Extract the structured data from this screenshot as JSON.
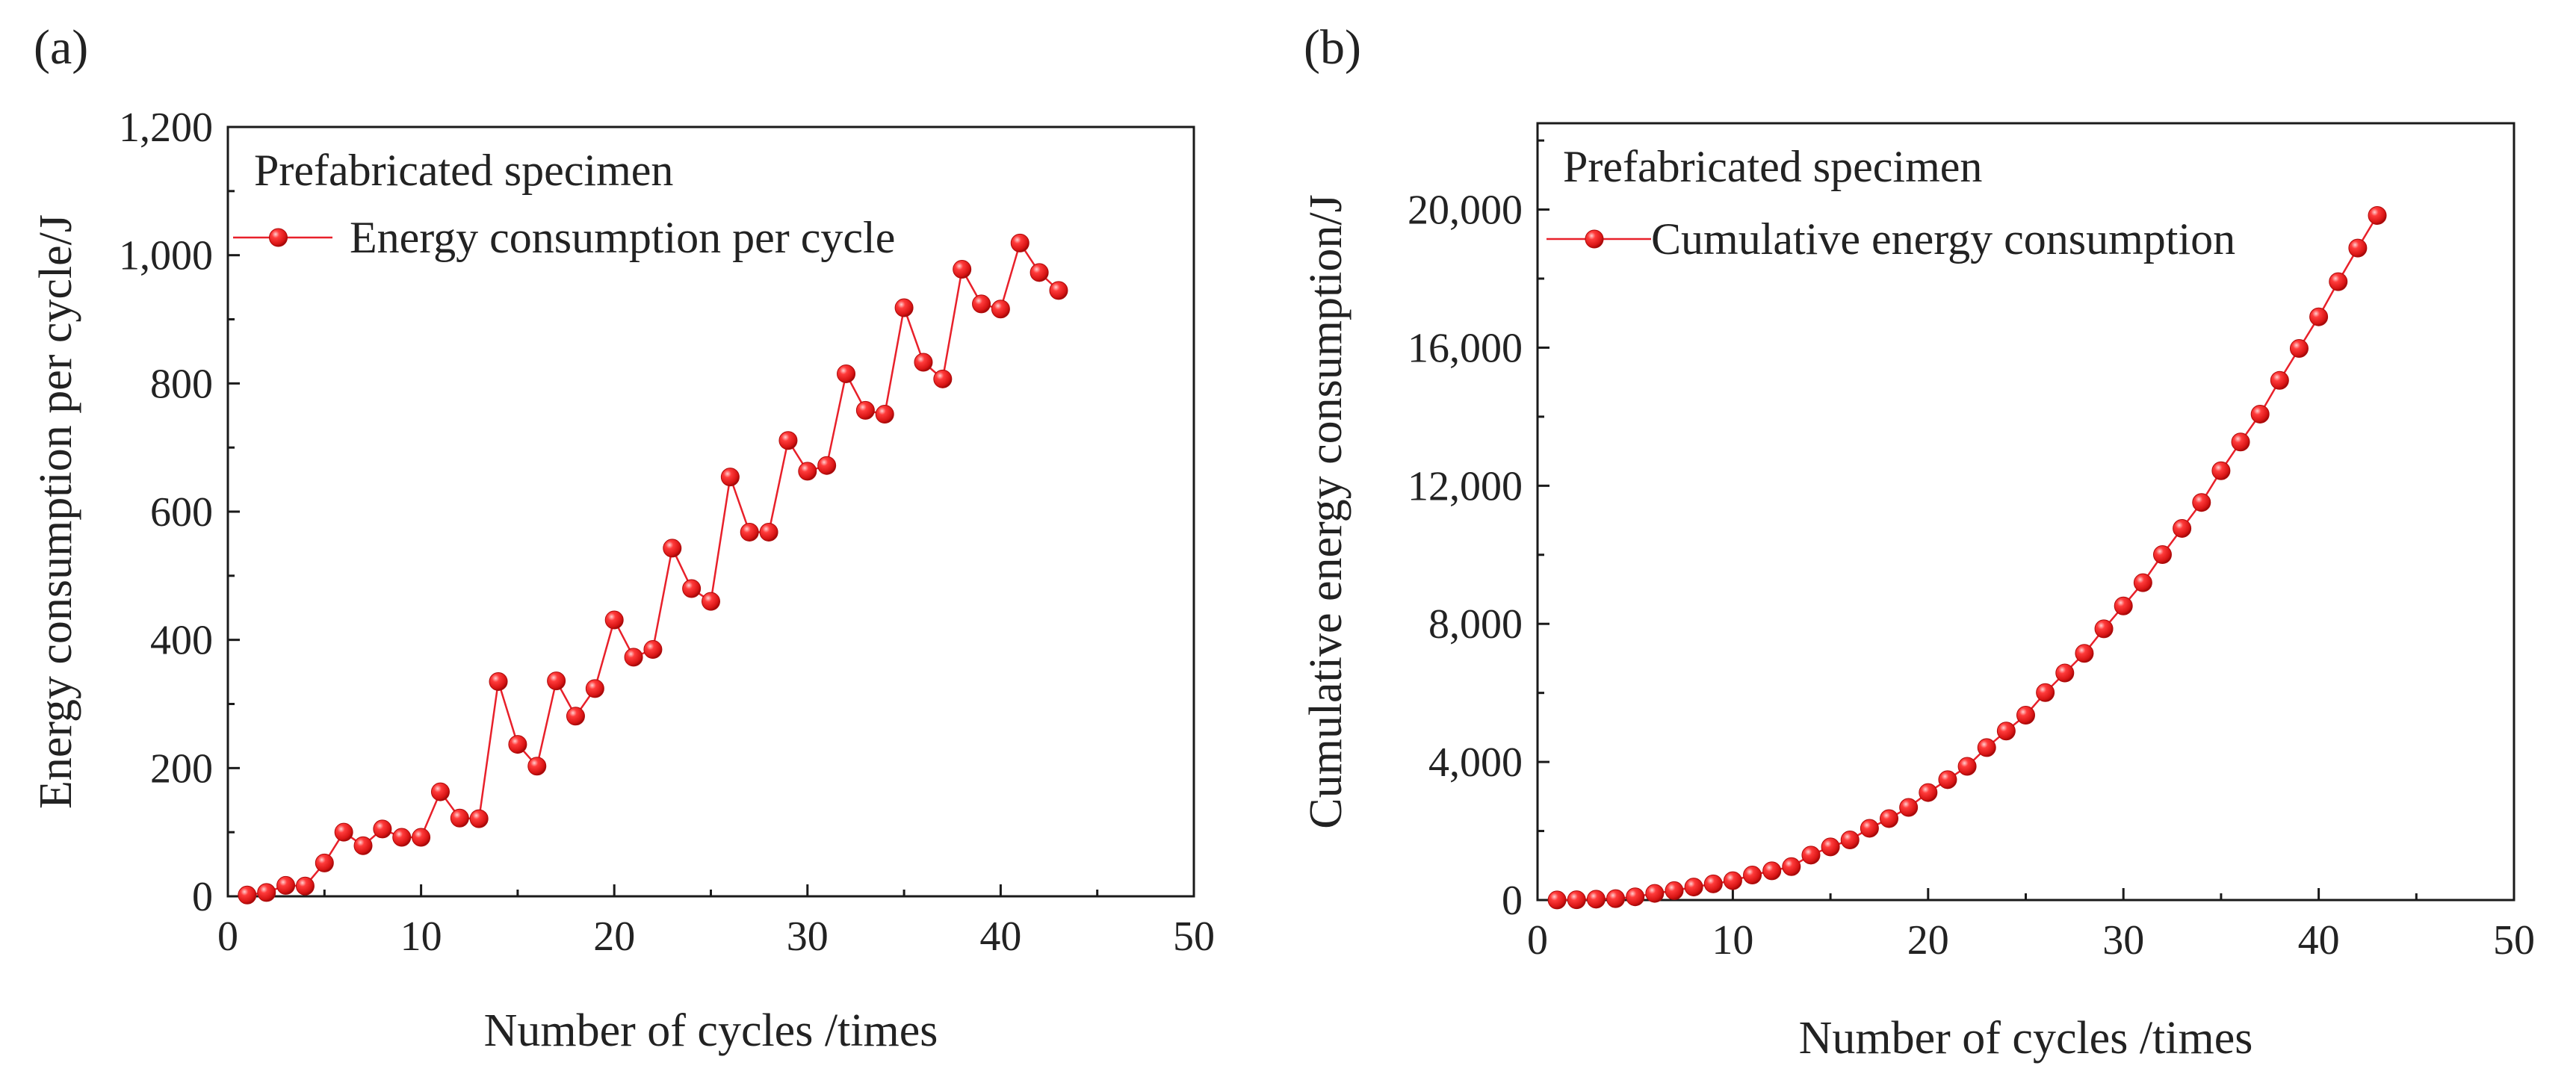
{
  "chart_data": [
    {
      "type": "line",
      "panel_label": "(a)",
      "legend_title": "Prefabricated specimen",
      "xlabel": "Number of cycles /times",
      "ylabel": "Energy consumption per cycle/J",
      "xlim": [
        0,
        50
      ],
      "ylim": [
        0,
        1200
      ],
      "xticks": [
        "0",
        "10",
        "20",
        "30",
        "40",
        "50"
      ],
      "yticks": [
        "0",
        "200",
        "400",
        "600",
        "800",
        "1,000",
        "1,200"
      ],
      "legend_position": "top-left",
      "grid": false,
      "color": "#e8202a",
      "series": [
        {
          "name": "Energy consumption per cycle",
          "x": [
            1,
            2,
            3,
            4,
            5,
            6,
            7,
            8,
            9,
            10,
            11,
            12,
            13,
            14,
            15,
            16,
            17,
            18,
            19,
            20,
            21,
            22,
            23,
            24,
            25,
            26,
            27,
            28,
            29,
            30,
            31,
            32,
            33,
            34,
            35,
            36,
            37,
            38,
            39,
            40,
            41,
            42,
            43
          ],
          "values": [
            2,
            6,
            17,
            16,
            52,
            100,
            79,
            105,
            92,
            92,
            163,
            122,
            121,
            335,
            237,
            203,
            336,
            281,
            324,
            431,
            373,
            385,
            543,
            480,
            460,
            654,
            568,
            568,
            711,
            663,
            672,
            815,
            758,
            752,
            918,
            833,
            807,
            978,
            924,
            916,
            1019,
            973,
            945
          ]
        }
      ]
    },
    {
      "type": "line",
      "panel_label": "(b)",
      "legend_title": "Prefabricated specimen",
      "xlabel": "Number of cycles /times",
      "ylabel": "Cumulative energy consumption/J",
      "xlim": [
        0,
        50
      ],
      "ylim": [
        0,
        22500
      ],
      "xticks": [
        "0",
        "10",
        "20",
        "30",
        "40",
        "50"
      ],
      "yticks": [
        "0",
        "4,000",
        "8,000",
        "12,000",
        "16,000",
        "20,000"
      ],
      "legend_position": "top-left",
      "grid": false,
      "color": "#e8202a",
      "series": [
        {
          "name": "Cumulative energy consumption",
          "x": [
            1,
            2,
            3,
            4,
            5,
            6,
            7,
            8,
            9,
            10,
            11,
            12,
            13,
            14,
            15,
            16,
            17,
            18,
            19,
            20,
            21,
            22,
            23,
            24,
            25,
            26,
            27,
            28,
            29,
            30,
            31,
            32,
            33,
            34,
            35,
            36,
            37,
            38,
            39,
            40,
            41,
            42,
            43
          ],
          "values": [
            2,
            8,
            25,
            41,
            93,
            193,
            272,
            377,
            469,
            561,
            724,
            846,
            967,
            1302,
            1539,
            1742,
            2078,
            2359,
            2683,
            3114,
            3487,
            3872,
            4415,
            4895,
            5355,
            6009,
            6577,
            7145,
            7856,
            8519,
            9191,
            10006,
            10764,
            11516,
            12434,
            13267,
            14074,
            15052,
            15976,
            16892,
            17911,
            18884,
            19829
          ]
        }
      ]
    }
  ]
}
